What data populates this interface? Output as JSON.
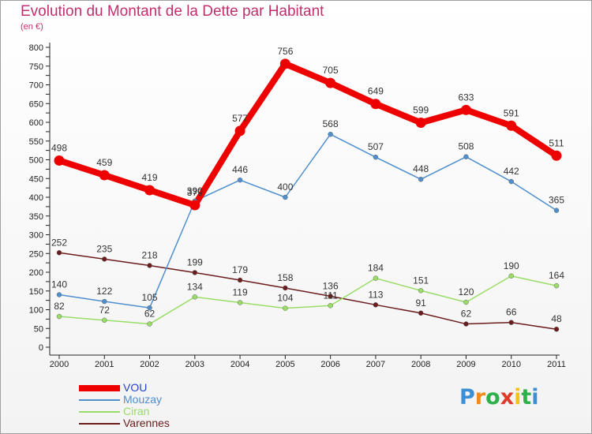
{
  "chart_data": {
    "type": "line",
    "title": "Evolution du Montant de la Dette par Habitant",
    "subtitle": "(en €)",
    "x": [
      "2000",
      "2001",
      "2002",
      "2003",
      "2004",
      "2005",
      "2006",
      "2007",
      "2008",
      "2009",
      "2010",
      "2011"
    ],
    "ylim": [
      0,
      800
    ],
    "yticks": [
      0,
      50,
      100,
      150,
      200,
      250,
      300,
      350,
      400,
      450,
      500,
      550,
      600,
      650,
      700,
      750,
      800
    ],
    "grid": false,
    "legend_position": "bottom-left",
    "series": [
      {
        "name": "VOU",
        "color": "#ee0000",
        "values": [
          498,
          459,
          419,
          379,
          577,
          756,
          705,
          649,
          599,
          633,
          591,
          511
        ]
      },
      {
        "name": "Mouzay",
        "color": "#4f8fce",
        "values": [
          140,
          122,
          105,
          390,
          446,
          400,
          568,
          507,
          448,
          508,
          442,
          365
        ]
      },
      {
        "name": "Ciran",
        "color": "#99dd66",
        "values": [
          82,
          72,
          62,
          134,
          119,
          104,
          111,
          184,
          151,
          120,
          190,
          164
        ]
      },
      {
        "name": "Varennes",
        "color": "#6b1c1c",
        "values": [
          252,
          235,
          218,
          199,
          179,
          158,
          136,
          113,
          91,
          62,
          66,
          48
        ]
      }
    ]
  },
  "logo": {
    "text": "Proxiti",
    "letters": [
      "P",
      "r",
      "o",
      "x",
      "i",
      "t",
      "i"
    ],
    "colors": [
      "#3a8fd6",
      "#f08a1e",
      "#2db14a",
      "#e03a2a",
      "#f3c31b",
      "#2db14a",
      "#3a8fd6"
    ]
  }
}
